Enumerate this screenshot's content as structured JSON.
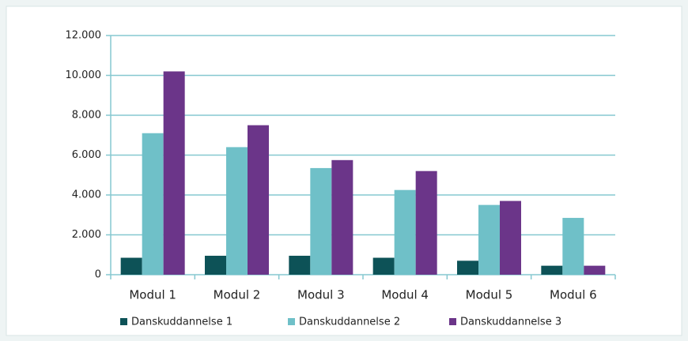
{
  "chart_data": {
    "type": "bar",
    "categories": [
      "Modul 1",
      "Modul 2",
      "Modul 3",
      "Modul 4",
      "Modul 5",
      "Modul 6"
    ],
    "series": [
      {
        "name": "Danskuddannelse 1",
        "color": "#0d5257",
        "values": [
          850,
          950,
          950,
          850,
          700,
          450
        ]
      },
      {
        "name": "Danskuddannelse 2",
        "color": "#6fc0c8",
        "values": [
          7100,
          6400,
          5350,
          4250,
          3500,
          2850
        ]
      },
      {
        "name": "Danskuddannelse 3",
        "color": "#6b3589",
        "values": [
          10200,
          7500,
          5750,
          5200,
          3700,
          450
        ]
      }
    ],
    "ylim": [
      0,
      12000
    ],
    "yticks": [
      0,
      {
        "value": 2000,
        "label": "2.000"
      },
      {
        "value": 4000,
        "label": "4.000"
      },
      {
        "value": 6000,
        "label": "6.000"
      },
      {
        "value": 8000,
        "label": "8.000"
      },
      {
        "value": 10000,
        "label": "10.000"
      },
      {
        "value": 12000,
        "label": "12.000"
      }
    ],
    "grid": true,
    "legend": "bottom"
  }
}
